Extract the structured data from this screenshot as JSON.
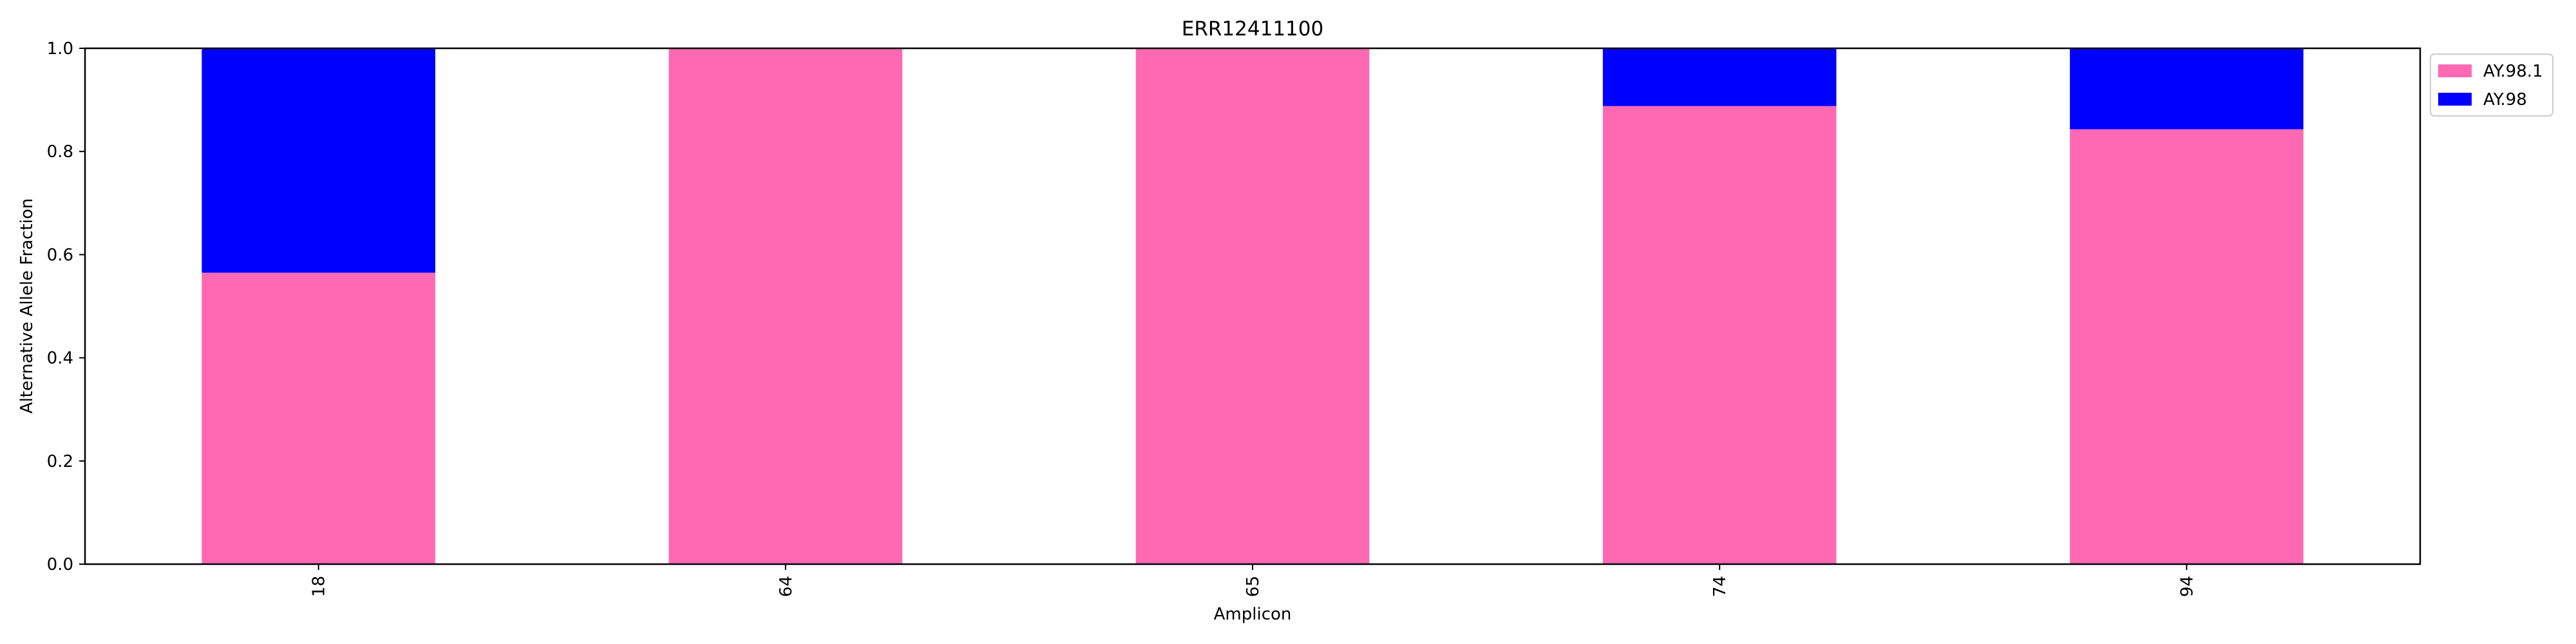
{
  "chart_data": {
    "type": "bar",
    "stacked": true,
    "title": "ERR12411100",
    "xlabel": "Amplicon",
    "ylabel": "Alternative Allele Fraction",
    "categories": [
      "18",
      "64",
      "65",
      "74",
      "94"
    ],
    "ylim": [
      0,
      1.0
    ],
    "yticks": [
      "0.0",
      "0.2",
      "0.4",
      "0.6",
      "0.8",
      "1.0"
    ],
    "grid": false,
    "legend_position": "outside top-right",
    "series": [
      {
        "name": "AY.98.1",
        "color": "#ff69b4",
        "values": [
          0.565,
          1.0,
          1.0,
          0.888,
          0.843
        ]
      },
      {
        "name": "AY.98",
        "color": "#0000ff",
        "values": [
          0.435,
          0.0,
          0.0,
          0.112,
          0.157
        ]
      }
    ]
  }
}
